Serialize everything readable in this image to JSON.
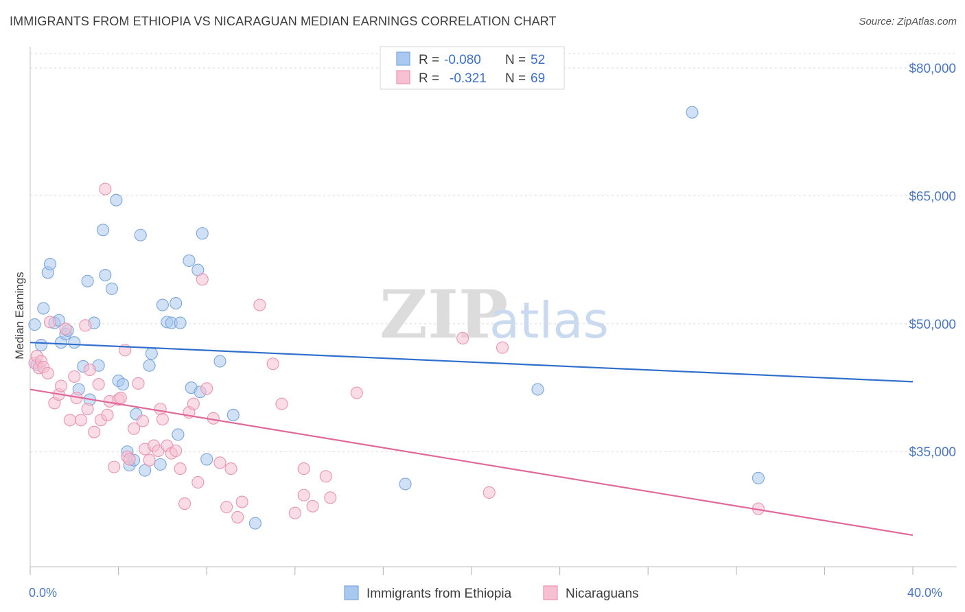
{
  "chart_data": {
    "type": "scatter",
    "title": "IMMIGRANTS FROM ETHIOPIA VS NICARAGUAN MEDIAN EARNINGS CORRELATION CHART",
    "source": "Source: ZipAtlas.com",
    "xlabel": "",
    "ylabel": "Median Earnings",
    "xlim": [
      0,
      40
    ],
    "ylim": [
      21500,
      82500
    ],
    "x_tick_labels": [
      "0.0%",
      "40.0%"
    ],
    "y_ticks": [
      35000,
      50000,
      65000,
      80000
    ],
    "y_tick_labels": [
      "$35,000",
      "$50,000",
      "$65,000",
      "$80,000"
    ],
    "watermark": {
      "zip": "ZIP",
      "atlas": "atlas"
    },
    "legend": {
      "rows": [
        {
          "r_label": "R =",
          "r_value": "-0.080",
          "n_label": "N =",
          "n_value": "52"
        },
        {
          "r_label": "R =",
          "r_value": "-0.321",
          "n_label": "N =",
          "n_value": "69"
        }
      ]
    },
    "series": [
      {
        "name": "Immigrants from Ethiopia",
        "color": "#a9c8ef",
        "stroke": "#7aa6dd",
        "trend_color": "#2f6fcc",
        "trend": [
          [
            0,
            47800
          ],
          [
            40,
            43200
          ]
        ],
        "points": [
          [
            0.2,
            49900
          ],
          [
            0.5,
            47500
          ],
          [
            0.6,
            51800
          ],
          [
            0.8,
            56000
          ],
          [
            0.9,
            57000
          ],
          [
            1.1,
            50100
          ],
          [
            1.3,
            50400
          ],
          [
            1.4,
            47800
          ],
          [
            1.6,
            48800
          ],
          [
            1.7,
            49200
          ],
          [
            2.0,
            47800
          ],
          [
            2.2,
            42300
          ],
          [
            2.4,
            45000
          ],
          [
            2.6,
            55000
          ],
          [
            2.7,
            41100
          ],
          [
            2.9,
            50100
          ],
          [
            3.1,
            45100
          ],
          [
            3.3,
            61000
          ],
          [
            3.4,
            55700
          ],
          [
            3.7,
            54100
          ],
          [
            3.9,
            64500
          ],
          [
            4.0,
            43300
          ],
          [
            4.2,
            42900
          ],
          [
            4.4,
            35000
          ],
          [
            4.5,
            33400
          ],
          [
            4.7,
            34000
          ],
          [
            4.8,
            39400
          ],
          [
            5.0,
            60400
          ],
          [
            5.2,
            32800
          ],
          [
            5.4,
            45100
          ],
          [
            5.5,
            46500
          ],
          [
            5.9,
            33500
          ],
          [
            6.0,
            52200
          ],
          [
            6.2,
            50200
          ],
          [
            6.4,
            50100
          ],
          [
            6.6,
            52400
          ],
          [
            6.7,
            37000
          ],
          [
            6.8,
            50100
          ],
          [
            7.2,
            57400
          ],
          [
            7.3,
            42500
          ],
          [
            7.6,
            56300
          ],
          [
            7.7,
            42000
          ],
          [
            7.8,
            60600
          ],
          [
            8.0,
            34100
          ],
          [
            8.6,
            45600
          ],
          [
            9.2,
            39300
          ],
          [
            10.2,
            26600
          ],
          [
            17.0,
            31200
          ],
          [
            23.0,
            42300
          ],
          [
            30.0,
            74800
          ],
          [
            33.0,
            31900
          ],
          [
            0.3,
            45200
          ]
        ]
      },
      {
        "name": "Nicaraguans",
        "color": "#f6bfd2",
        "stroke": "#eb93b1",
        "trend_color": "#e0699a",
        "trend": [
          [
            0,
            42300
          ],
          [
            40,
            25200
          ]
        ],
        "points": [
          [
            0.2,
            45400
          ],
          [
            0.3,
            46200
          ],
          [
            0.4,
            44800
          ],
          [
            0.5,
            45600
          ],
          [
            0.6,
            44900
          ],
          [
            0.8,
            44200
          ],
          [
            0.9,
            50200
          ],
          [
            1.1,
            40700
          ],
          [
            1.3,
            41700
          ],
          [
            1.4,
            42700
          ],
          [
            1.6,
            49400
          ],
          [
            1.8,
            38700
          ],
          [
            2.0,
            43800
          ],
          [
            2.1,
            41300
          ],
          [
            2.3,
            38700
          ],
          [
            2.5,
            49800
          ],
          [
            2.6,
            40000
          ],
          [
            2.7,
            44600
          ],
          [
            2.9,
            37300
          ],
          [
            3.1,
            42900
          ],
          [
            3.2,
            38700
          ],
          [
            3.4,
            65800
          ],
          [
            3.5,
            39300
          ],
          [
            3.6,
            40900
          ],
          [
            3.8,
            33200
          ],
          [
            4.0,
            41100
          ],
          [
            4.1,
            41300
          ],
          [
            4.3,
            46900
          ],
          [
            4.4,
            34400
          ],
          [
            4.5,
            34100
          ],
          [
            4.7,
            37700
          ],
          [
            4.9,
            43000
          ],
          [
            5.1,
            38600
          ],
          [
            5.2,
            35300
          ],
          [
            5.4,
            34000
          ],
          [
            5.6,
            35700
          ],
          [
            5.8,
            35100
          ],
          [
            5.9,
            40000
          ],
          [
            6.0,
            38800
          ],
          [
            6.2,
            35700
          ],
          [
            6.4,
            34800
          ],
          [
            6.6,
            35100
          ],
          [
            6.8,
            33000
          ],
          [
            7.0,
            28900
          ],
          [
            7.2,
            39600
          ],
          [
            7.4,
            40600
          ],
          [
            7.6,
            31400
          ],
          [
            7.8,
            55200
          ],
          [
            8.0,
            42400
          ],
          [
            8.3,
            38900
          ],
          [
            8.6,
            33700
          ],
          [
            8.9,
            28500
          ],
          [
            9.1,
            33000
          ],
          [
            9.4,
            27300
          ],
          [
            9.6,
            29100
          ],
          [
            10.4,
            52200
          ],
          [
            11.0,
            45300
          ],
          [
            11.4,
            40600
          ],
          [
            12.0,
            27800
          ],
          [
            12.4,
            33000
          ],
          [
            12.4,
            29900
          ],
          [
            12.8,
            28600
          ],
          [
            13.4,
            32100
          ],
          [
            13.6,
            29600
          ],
          [
            14.8,
            41900
          ],
          [
            19.6,
            48300
          ],
          [
            20.8,
            30200
          ],
          [
            21.4,
            47200
          ],
          [
            33.0,
            28300
          ]
        ]
      }
    ]
  }
}
